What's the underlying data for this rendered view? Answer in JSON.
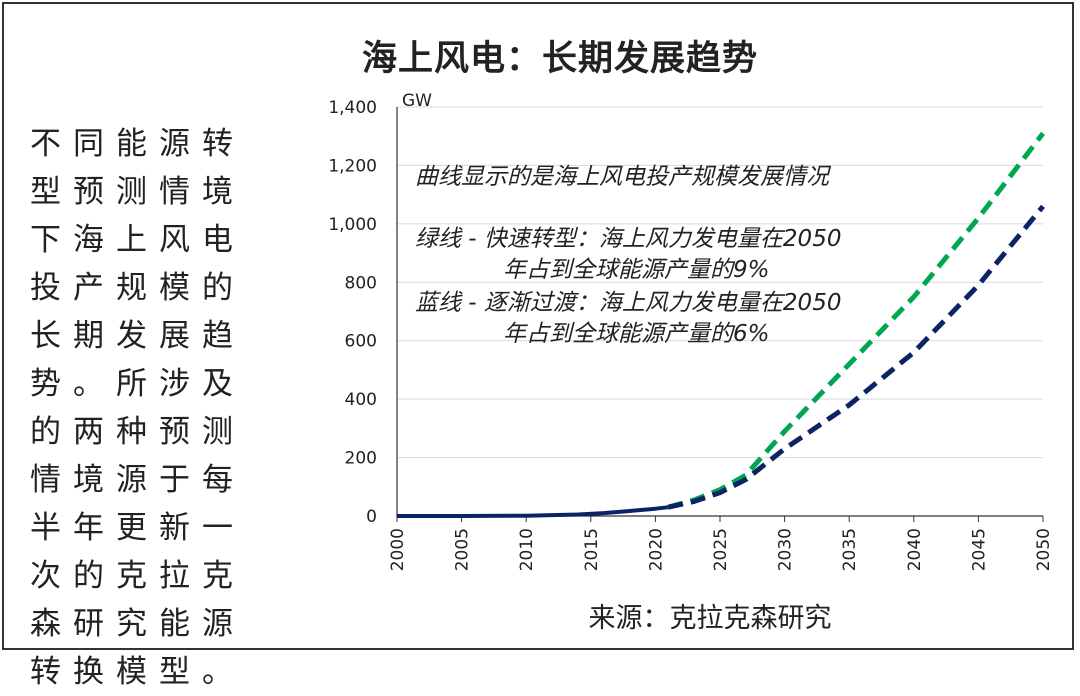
{
  "title": "海上风电：长期发展趋势",
  "side_text": "不同能源转型预测情境下海上风电投产规模的长期发展趋势。所涉及的两种预测情境源于每半年更新一次的克拉克森研究能源转换模型。",
  "source": "来源：克拉克森研究",
  "notes": {
    "line1": "曲线显示的是海上风电投产规模发展情况",
    "green_1": "绿线 - 快速转型：海上风力发电量在2050",
    "green_2": "年占到全球能源产量的9%",
    "blue_1": "蓝线 - 逐渐过渡：海上风力发电量在2050",
    "blue_2": "年占到全球能源产量的6%"
  },
  "colors": {
    "green": "#00A650",
    "navy": "#0D2464",
    "grid": "#D9D9D9",
    "axis": "#333333"
  },
  "chart_data": {
    "type": "line",
    "ylabel": "GW",
    "ylim": [
      0,
      1400
    ],
    "yticks": [
      "0",
      "200",
      "400",
      "600",
      "800",
      "1,000",
      "1,200",
      "1,400"
    ],
    "xlim": [
      2000,
      2050
    ],
    "xticks": [
      "2000",
      "2005",
      "2010",
      "2015",
      "2020",
      "2025",
      "2030",
      "2035",
      "2040",
      "2045",
      "2050"
    ],
    "series": [
      {
        "color": "#0D2464",
        "style": "solid",
        "x": [
          2000,
          2005,
          2010,
          2012,
          2014,
          2016,
          2018,
          2020,
          2021
        ],
        "values": [
          0,
          0,
          1,
          3,
          5,
          10,
          17,
          25,
          30
        ]
      },
      {
        "color": "#00A650",
        "style": "dashed",
        "x": [
          2021,
          2023,
          2025,
          2027,
          2030,
          2035,
          2040,
          2045,
          2050
        ],
        "values": [
          30,
          55,
          90,
          140,
          290,
          520,
          750,
          1020,
          1310
        ]
      },
      {
        "color": "#0D2464",
        "style": "dashed",
        "x": [
          2021,
          2023,
          2025,
          2027,
          2030,
          2035,
          2040,
          2045,
          2050
        ],
        "values": [
          30,
          50,
          80,
          125,
          230,
          380,
          560,
          790,
          1060
        ]
      }
    ]
  }
}
